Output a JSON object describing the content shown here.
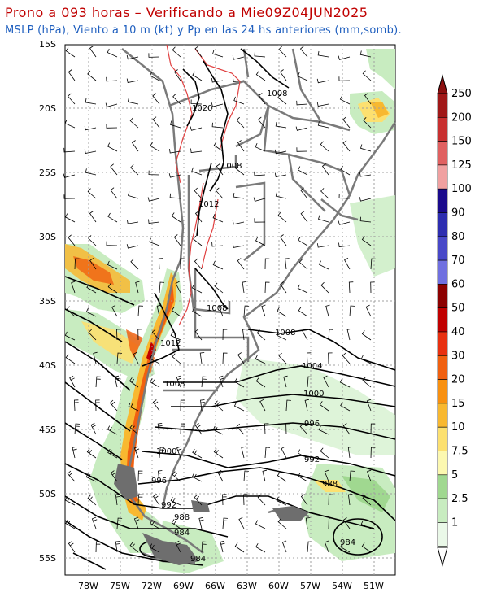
{
  "title_line1": "Prono a 093 horas – Verificando a Mie09Z04JUN2025",
  "title_line2": "MSLP (hPa), Viento a 10 m (kt) y Pp en las 24 hs anteriores (mm,somb).",
  "lat_labels": [
    "15S",
    "20S",
    "25S",
    "30S",
    "35S",
    "40S",
    "45S",
    "50S",
    "55S"
  ],
  "lon_labels": [
    "78W",
    "75W",
    "72W",
    "69W",
    "66W",
    "63W",
    "60W",
    "57W",
    "54W",
    "51W"
  ],
  "isobar_labels": [
    "1008",
    "1020",
    "1008",
    "1012",
    "1008",
    "1012",
    "1008",
    "1008",
    "1004",
    "1000",
    "996",
    "1000",
    "996",
    "992",
    "988",
    "992",
    "988",
    "984",
    "984",
    "984"
  ],
  "colorbar": {
    "levels": [
      {
        "label": "250",
        "color": "#a01818"
      },
      {
        "label": "200",
        "color": "#c83030"
      },
      {
        "label": "150",
        "color": "#e06060"
      },
      {
        "label": "125",
        "color": "#f0a0a0"
      },
      {
        "label": "100",
        "color": "#1a0a8c"
      },
      {
        "label": "90",
        "color": "#2d2db0"
      },
      {
        "label": "80",
        "color": "#4848c8"
      },
      {
        "label": "70",
        "color": "#7070e0"
      },
      {
        "label": "60",
        "color": "#8c0000"
      },
      {
        "label": "50",
        "color": "#c00000"
      },
      {
        "label": "40",
        "color": "#e83010"
      },
      {
        "label": "30",
        "color": "#f06010"
      },
      {
        "label": "20",
        "color": "#f89010"
      },
      {
        "label": "15",
        "color": "#f8b830"
      },
      {
        "label": "10",
        "color": "#fce070"
      },
      {
        "label": "7.5",
        "color": "#fcf8b0"
      },
      {
        "label": "5",
        "color": "#a0d890"
      },
      {
        "label": "2.5",
        "color": "#c8ecc0"
      },
      {
        "label": "1",
        "color": "#eaf8e8"
      }
    ],
    "top_arrow_color": "#8c1010",
    "bottom_arrow_color": "#ffffff"
  }
}
